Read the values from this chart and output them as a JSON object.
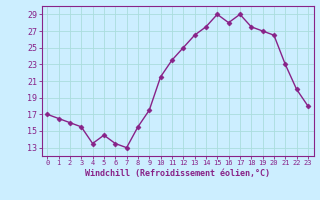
{
  "x": [
    0,
    1,
    2,
    3,
    4,
    5,
    6,
    7,
    8,
    9,
    10,
    11,
    12,
    13,
    14,
    15,
    16,
    17,
    18,
    19,
    20,
    21,
    22,
    23
  ],
  "y": [
    17,
    16.5,
    16,
    15.5,
    13.5,
    14.5,
    13.5,
    13,
    15.5,
    17.5,
    21.5,
    23.5,
    25,
    26.5,
    27.5,
    29,
    28,
    29,
    27.5,
    27,
    26.5,
    23,
    20,
    18
  ],
  "line_color": "#882288",
  "marker": "D",
  "markersize": 2.5,
  "bg_color": "#cceeff",
  "grid_color": "#aadddd",
  "xlabel": "Windchill (Refroidissement éolien,°C)",
  "ylim": [
    12,
    30
  ],
  "xlim": [
    -0.5,
    23.5
  ],
  "yticks": [
    13,
    15,
    17,
    19,
    21,
    23,
    25,
    27,
    29
  ],
  "xticks": [
    0,
    1,
    2,
    3,
    4,
    5,
    6,
    7,
    8,
    9,
    10,
    11,
    12,
    13,
    14,
    15,
    16,
    17,
    18,
    19,
    20,
    21,
    22,
    23
  ]
}
